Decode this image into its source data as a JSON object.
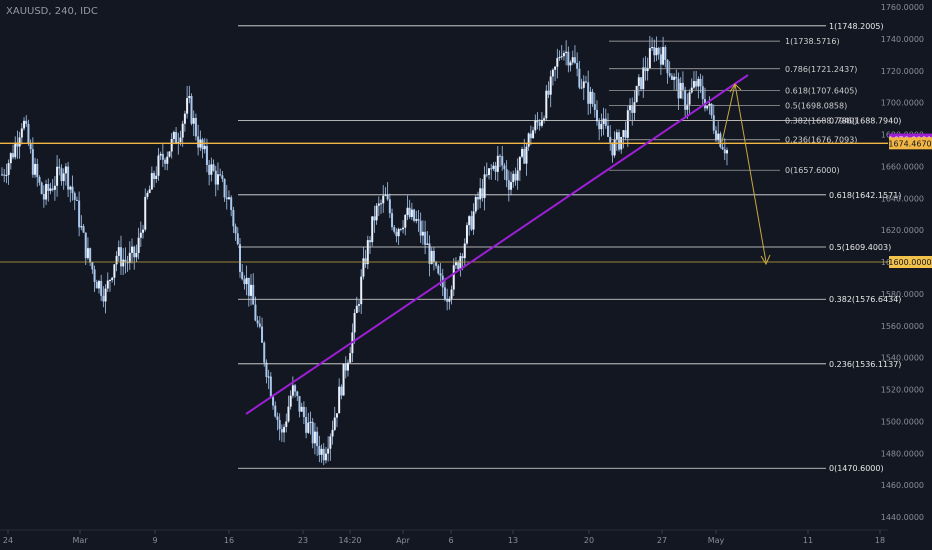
{
  "header": {
    "symbol": "XAUUSD, 240, IDC"
  },
  "colors": {
    "background": "#131722",
    "candle": "#aac8ee",
    "fib_line": "#e6e6e6",
    "support_line": "#f2b644",
    "trend_line": "#9d1fd6",
    "projection": "#c7a93f",
    "axis_text": "#8a8e99",
    "badge_purple": "#9d1fd6",
    "badge_orange": "#f2b644",
    "badge_gold": "#f2c24a"
  },
  "chart_data": {
    "type": "candlestick",
    "symbol": "XAUUSD",
    "timeframe": "240",
    "source": "IDC",
    "ylim": [
      1430,
      1765
    ],
    "y_ticks": [
      "1760.0000",
      "1740.0000",
      "1720.0000",
      "1700.0000",
      "1680.0000",
      "1660.0000",
      "1640.0000",
      "1620.0000",
      "1600.0000",
      "1580.0000",
      "1560.0000",
      "1540.0000",
      "1520.0000",
      "1500.0000",
      "1480.0000",
      "1460.0000",
      "1440.0000"
    ],
    "x_ticks": [
      "24",
      "Mar",
      "9",
      "16",
      "23",
      "14:20",
      "Apr",
      "6",
      "13",
      "20",
      "27",
      "May",
      "11",
      "18"
    ],
    "price_path": [
      [
        1655,
        1660
      ],
      [
        1668,
        1666
      ],
      [
        1690,
        1680
      ],
      [
        1660,
        1650
      ],
      [
        1640,
        1632
      ],
      [
        1650,
        1640
      ],
      [
        1660,
        1655
      ],
      [
        1640,
        1630
      ],
      [
        1610,
        1600
      ],
      [
        1590,
        1590
      ],
      [
        1580,
        1575
      ],
      [
        1605,
        1600
      ],
      [
        1600,
        1600
      ],
      [
        1605,
        1605
      ],
      [
        1640,
        1635
      ],
      [
        1660,
        1650
      ],
      [
        1670,
        1665
      ],
      [
        1680,
        1676
      ],
      [
        1700,
        1690
      ],
      [
        1675,
        1672
      ],
      [
        1660,
        1662
      ],
      [
        1650,
        1648
      ],
      [
        1638,
        1640
      ],
      [
        1600,
        1600
      ],
      [
        1580,
        1575
      ],
      [
        1550,
        1545
      ],
      [
        1520,
        1515
      ],
      [
        1490,
        1480
      ],
      [
        1520,
        1510
      ],
      [
        1505,
        1495
      ],
      [
        1490,
        1480
      ],
      [
        1480,
        1470
      ],
      [
        1500,
        1500
      ],
      [
        1530,
        1530
      ],
      [
        1560,
        1560
      ],
      [
        1600,
        1600
      ],
      [
        1630,
        1630
      ],
      [
        1640,
        1640
      ],
      [
        1620,
        1620
      ],
      [
        1630,
        1632
      ],
      [
        1625,
        1625
      ],
      [
        1610,
        1608
      ],
      [
        1590,
        1588
      ],
      [
        1580,
        1578
      ],
      [
        1600,
        1600
      ],
      [
        1620,
        1620
      ],
      [
        1640,
        1640
      ],
      [
        1655,
        1650
      ],
      [
        1665,
        1660
      ],
      [
        1650,
        1650
      ],
      [
        1660,
        1660
      ],
      [
        1680,
        1680
      ],
      [
        1690,
        1690
      ],
      [
        1710,
        1710
      ],
      [
        1735,
        1735
      ],
      [
        1728,
        1725
      ],
      [
        1712,
        1710
      ],
      [
        1700,
        1700
      ],
      [
        1685,
        1685
      ],
      [
        1672,
        1670
      ],
      [
        1680,
        1680
      ],
      [
        1700,
        1700
      ],
      [
        1720,
        1720
      ],
      [
        1735,
        1735
      ],
      [
        1728,
        1728
      ],
      [
        1712,
        1710
      ],
      [
        1700,
        1700
      ],
      [
        1712,
        1712
      ],
      [
        1700,
        1700
      ],
      [
        1682,
        1680
      ],
      [
        1670,
        1670
      ]
    ],
    "fibonacci_upper": [
      {
        "label": "1(1748.2005)",
        "price": 1748.2005
      },
      {
        "label": "0.786(1688.7940)",
        "price": 1688.794
      },
      {
        "label": "0.618(1642.1571)",
        "price": 1642.1571
      },
      {
        "label": "0.5(1609.4003)",
        "price": 1609.4003
      },
      {
        "label": "0.382(1576.6434)",
        "price": 1576.6434
      },
      {
        "label": "0.236(1536.1137)",
        "price": 1536.1137
      },
      {
        "label": "0(1470.6000)",
        "price": 1470.6
      }
    ],
    "fibonacci_lower": [
      {
        "label": "1(1738.5716)",
        "price": 1738.5716
      },
      {
        "label": "0.786(1721.2437)",
        "price": 1721.2437
      },
      {
        "label": "0.618(1707.6405)",
        "price": 1707.6405
      },
      {
        "label": "0.5(1698.0858)",
        "price": 1698.0858
      },
      {
        "label": "0.382(1688.7940)",
        "price": 1688.794
      },
      {
        "label": "0.236(1676.7093)",
        "price": 1676.7093
      },
      {
        "label": "0(1657.6000)",
        "price": 1657.6
      }
    ],
    "horizontal_levels": [
      {
        "price": 1674.5,
        "style": "solid",
        "color": "#f2b644"
      },
      {
        "price": 1600,
        "style": "thin",
        "color": "#c7a93f"
      }
    ],
    "trend_line": {
      "from": [
        1508
      ],
      "to": [
        1714
      ]
    },
    "price_badges": [
      {
        "label": "1676.8080",
        "price": 1676.808,
        "color": "#9d1fd6"
      },
      {
        "label": "1674.4670",
        "price": 1674.467,
        "color": "#f2b644"
      },
      {
        "label": "1600.0000",
        "price": 1600,
        "color": "#f2c24a"
      }
    ]
  }
}
